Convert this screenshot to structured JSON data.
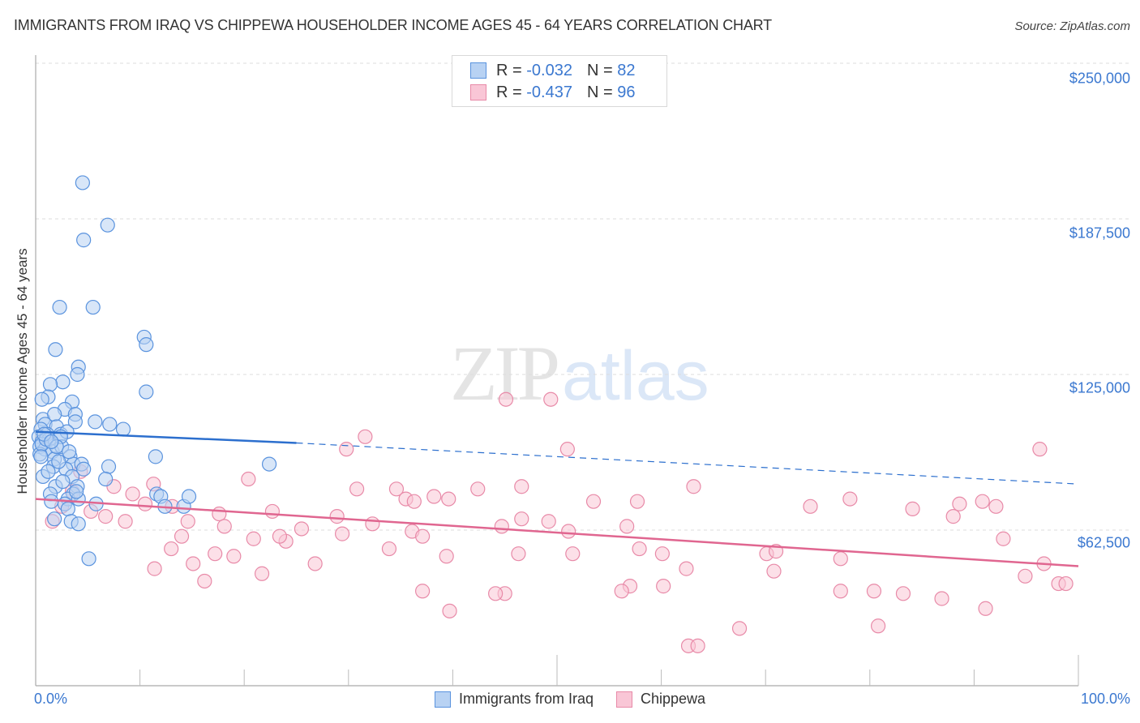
{
  "header": {
    "title": "IMMIGRANTS FROM IRAQ VS CHIPPEWA HOUSEHOLDER INCOME AGES 45 - 64 YEARS CORRELATION CHART",
    "source": "Source: ZipAtlas.com"
  },
  "watermark": {
    "zip": "ZIP",
    "atlas": "atlas"
  },
  "legend_top": {
    "rows": [
      {
        "r_label": "R =",
        "r_value": "-0.032",
        "n_label": "N =",
        "n_value": "82"
      },
      {
        "r_label": "R =",
        "r_value": "-0.437",
        "n_label": "N =",
        "n_value": "96"
      }
    ]
  },
  "axes": {
    "ylabel": "Householder Income Ages 45 - 64 years",
    "yticks": [
      "$250,000",
      "$187,500",
      "$125,000",
      "$62,500"
    ],
    "xticks": [
      "0.0%",
      "100.0%"
    ]
  },
  "legend_bottom": {
    "items": [
      "Immigrants from Iraq",
      "Chippewa"
    ]
  },
  "colors": {
    "blue_fill": "#b8d2f3",
    "blue_stroke": "#5a93de",
    "blue_line": "#2c6fce",
    "pink_fill": "#f9c6d6",
    "pink_stroke": "#e88aa8",
    "pink_line": "#e06690",
    "tick_text": "#3b78d0"
  },
  "chart_data": {
    "type": "scatter",
    "title": "IMMIGRANTS FROM IRAQ VS CHIPPEWA HOUSEHOLDER INCOME AGES 45 - 64 YEARS CORRELATION CHART",
    "xlabel": "",
    "ylabel": "Householder Income Ages 45 - 64 years",
    "xlim": [
      0,
      100
    ],
    "ylim": [
      0,
      262000
    ],
    "yticks": [
      62500,
      125000,
      187500,
      250000
    ],
    "grid": true,
    "legend_position": "bottom",
    "series": [
      {
        "name": "Immigrants from Iraq",
        "R": -0.032,
        "N": 82,
        "trend": {
          "x0": 0,
          "y0": 102000,
          "x1": 25,
          "y1": 97500,
          "dashed_to_x": 100,
          "dashed_y1": 81000
        },
        "points": [
          [
            4.5,
            202000
          ],
          [
            6.9,
            185000
          ],
          [
            4.6,
            179000
          ],
          [
            2.3,
            152000
          ],
          [
            5.5,
            152000
          ],
          [
            10.4,
            140000
          ],
          [
            10.6,
            137000
          ],
          [
            1.9,
            135000
          ],
          [
            4.1,
            128000
          ],
          [
            2.6,
            122000
          ],
          [
            1.4,
            121000
          ],
          [
            4.0,
            125000
          ],
          [
            1.2,
            116000
          ],
          [
            3.5,
            114000
          ],
          [
            0.6,
            115000
          ],
          [
            10.6,
            118000
          ],
          [
            0.7,
            107000
          ],
          [
            2.8,
            111000
          ],
          [
            1.8,
            109000
          ],
          [
            3.8,
            109000
          ],
          [
            0.9,
            105000
          ],
          [
            3.8,
            106000
          ],
          [
            5.7,
            106000
          ],
          [
            7.1,
            105000
          ],
          [
            2.0,
            104000
          ],
          [
            0.5,
            103000
          ],
          [
            1.1,
            101000
          ],
          [
            0.3,
            100000
          ],
          [
            0.6,
            98000
          ],
          [
            1.3,
            99000
          ],
          [
            2.4,
            101000
          ],
          [
            3.0,
            102000
          ],
          [
            0.4,
            96000
          ],
          [
            0.9,
            95000
          ],
          [
            1.6,
            94000
          ],
          [
            2.5,
            96000
          ],
          [
            8.4,
            103000
          ],
          [
            2.4,
            100000
          ],
          [
            0.4,
            93000
          ],
          [
            1.8,
            91000
          ],
          [
            3.3,
            92000
          ],
          [
            3.6,
            89000
          ],
          [
            1.7,
            88000
          ],
          [
            4.4,
            89000
          ],
          [
            2.9,
            87000
          ],
          [
            4.6,
            87000
          ],
          [
            11.5,
            92000
          ],
          [
            22.4,
            89000
          ],
          [
            7.0,
            88000
          ],
          [
            0.7,
            84000
          ],
          [
            3.5,
            84000
          ],
          [
            6.7,
            83000
          ],
          [
            1.9,
            80000
          ],
          [
            4.0,
            80000
          ],
          [
            1.4,
            77000
          ],
          [
            3.6,
            77000
          ],
          [
            3.1,
            75000
          ],
          [
            4.1,
            75000
          ],
          [
            11.6,
            77000
          ],
          [
            12.0,
            76000
          ],
          [
            1.5,
            74000
          ],
          [
            2.8,
            73000
          ],
          [
            5.8,
            73000
          ],
          [
            3.1,
            71000
          ],
          [
            14.2,
            72000
          ],
          [
            1.8,
            67000
          ],
          [
            3.4,
            66000
          ],
          [
            4.1,
            65000
          ],
          [
            5.1,
            51000
          ],
          [
            0.6,
            97000
          ],
          [
            1.0,
            99000
          ],
          [
            2.0,
            96000
          ],
          [
            0.8,
            101000
          ],
          [
            1.5,
            98000
          ],
          [
            3.2,
            94000
          ],
          [
            2.2,
            90000
          ],
          [
            0.5,
            92000
          ],
          [
            1.2,
            86000
          ],
          [
            2.6,
            82000
          ],
          [
            3.9,
            78000
          ],
          [
            12.4,
            72000
          ],
          [
            14.7,
            76000
          ]
        ]
      },
      {
        "name": "Chippewa",
        "R": -0.437,
        "N": 96,
        "trend": {
          "x0": 0,
          "y0": 75000,
          "x1": 100,
          "y1": 48000
        },
        "points": [
          [
            45.1,
            115000
          ],
          [
            49.4,
            115000
          ],
          [
            31.6,
            100000
          ],
          [
            29.8,
            95000
          ],
          [
            51.0,
            95000
          ],
          [
            96.3,
            95000
          ],
          [
            20.4,
            83000
          ],
          [
            30.8,
            79000
          ],
          [
            42.4,
            79000
          ],
          [
            34.6,
            79000
          ],
          [
            38.2,
            76000
          ],
          [
            46.6,
            80000
          ],
          [
            57.7,
            74000
          ],
          [
            63.1,
            80000
          ],
          [
            39.6,
            75000
          ],
          [
            35.5,
            75000
          ],
          [
            36.3,
            74000
          ],
          [
            53.5,
            74000
          ],
          [
            78.1,
            75000
          ],
          [
            74.3,
            72000
          ],
          [
            84.1,
            71000
          ],
          [
            88.0,
            68000
          ],
          [
            88.6,
            73000
          ],
          [
            90.8,
            74000
          ],
          [
            92.1,
            72000
          ],
          [
            22.7,
            70000
          ],
          [
            28.9,
            68000
          ],
          [
            32.3,
            65000
          ],
          [
            36.1,
            62000
          ],
          [
            37.1,
            60000
          ],
          [
            44.7,
            64000
          ],
          [
            51.1,
            62000
          ],
          [
            49.2,
            66000
          ],
          [
            46.6,
            67000
          ],
          [
            56.7,
            64000
          ],
          [
            57.9,
            55000
          ],
          [
            51.5,
            53000
          ],
          [
            60.1,
            53000
          ],
          [
            46.3,
            53000
          ],
          [
            70.1,
            53000
          ],
          [
            77.2,
            51000
          ],
          [
            71.0,
            54000
          ],
          [
            92.8,
            59000
          ],
          [
            33.9,
            55000
          ],
          [
            39.4,
            52000
          ],
          [
            45.0,
            37000
          ],
          [
            39.7,
            30000
          ],
          [
            44.1,
            37000
          ],
          [
            57.0,
            40000
          ],
          [
            60.2,
            40000
          ],
          [
            62.4,
            47000
          ],
          [
            70.8,
            46000
          ],
          [
            77.2,
            38000
          ],
          [
            80.4,
            38000
          ],
          [
            83.2,
            37000
          ],
          [
            86.9,
            35000
          ],
          [
            91.1,
            31000
          ],
          [
            94.9,
            44000
          ],
          [
            96.7,
            49000
          ],
          [
            98.1,
            41000
          ],
          [
            98.8,
            41000
          ],
          [
            80.8,
            24000
          ],
          [
            37.1,
            38000
          ],
          [
            56.2,
            38000
          ],
          [
            62.6,
            16000
          ],
          [
            63.5,
            16000
          ],
          [
            67.5,
            23000
          ],
          [
            19.0,
            52000
          ],
          [
            21.7,
            45000
          ],
          [
            25.5,
            63000
          ],
          [
            26.8,
            49000
          ],
          [
            29.4,
            61000
          ],
          [
            16.2,
            42000
          ],
          [
            15.1,
            49000
          ],
          [
            11.4,
            47000
          ],
          [
            17.2,
            53000
          ],
          [
            13.0,
            55000
          ],
          [
            14.0,
            60000
          ],
          [
            20.9,
            59000
          ],
          [
            24.0,
            58000
          ],
          [
            23.4,
            60000
          ],
          [
            14.6,
            66000
          ],
          [
            13.1,
            72000
          ],
          [
            17.6,
            69000
          ],
          [
            18.1,
            64000
          ],
          [
            8.6,
            66000
          ],
          [
            10.5,
            73000
          ],
          [
            9.3,
            77000
          ],
          [
            6.7,
            68000
          ],
          [
            5.3,
            70000
          ],
          [
            4.3,
            86000
          ],
          [
            7.5,
            80000
          ],
          [
            3.5,
            78000
          ],
          [
            2.5,
            72000
          ],
          [
            1.6,
            66000
          ],
          [
            11.3,
            81000
          ]
        ]
      }
    ]
  }
}
